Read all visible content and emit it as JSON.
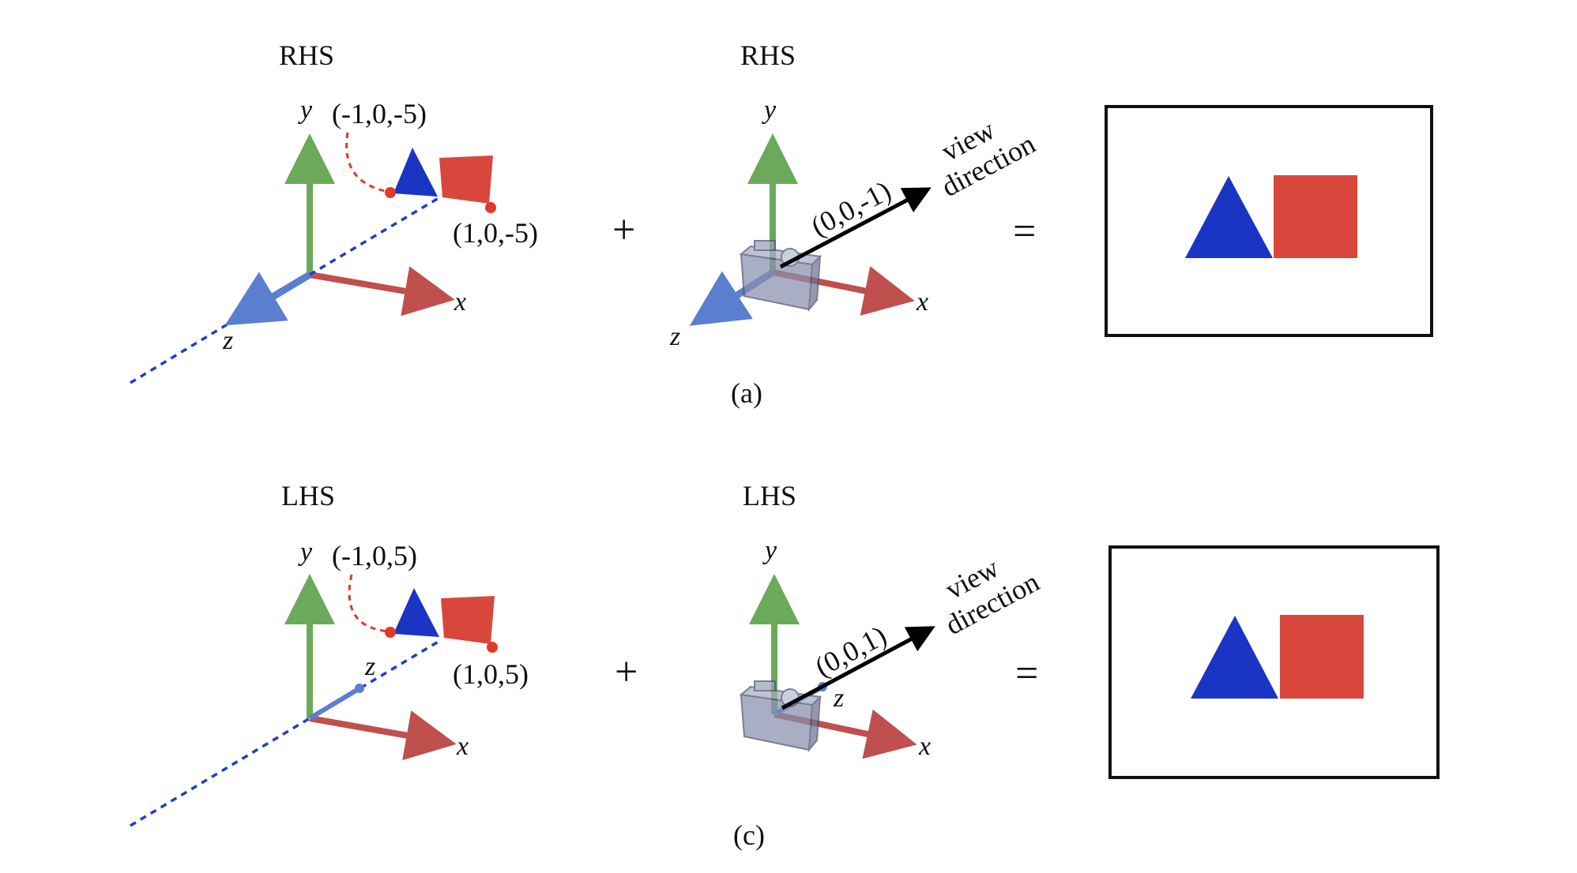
{
  "panel_a": {
    "world_title": "RHS",
    "camera_title": "RHS",
    "axis_x": "x",
    "axis_y": "y",
    "axis_z": "z",
    "camera_axis_x": "x",
    "camera_axis_y": "y",
    "camera_axis_z": "z",
    "point_left": "(-1,0,-5)",
    "point_right": "(1,0,-5)",
    "view_vector": "(0,0,-1)",
    "view_word_1": "view",
    "view_word_2": "direction",
    "plus": "+",
    "equals": "=",
    "caption": "(a)"
  },
  "panel_c": {
    "world_title": "LHS",
    "camera_title": "LHS",
    "axis_x": "x",
    "axis_y": "y",
    "axis_z": "z",
    "camera_axis_x": "x",
    "camera_axis_y": "y",
    "camera_axis_z": "z",
    "point_left": "(-1,0,5)",
    "point_right": "(1,0,5)",
    "view_vector": "(0,0,1)",
    "view_word_1": "view",
    "view_word_2": "direction",
    "plus": "+",
    "equals": "=",
    "caption": "(c)"
  },
  "colors": {
    "x_axis": "#c0504d",
    "y_axis": "#6aaa5a",
    "z_axis": "#5a7fd0",
    "dashed_z": "#1f3fc8",
    "triangle": "#1a35c4",
    "square": "#d9473c",
    "curve": "#e03a2a",
    "camera": "#8890b0"
  }
}
